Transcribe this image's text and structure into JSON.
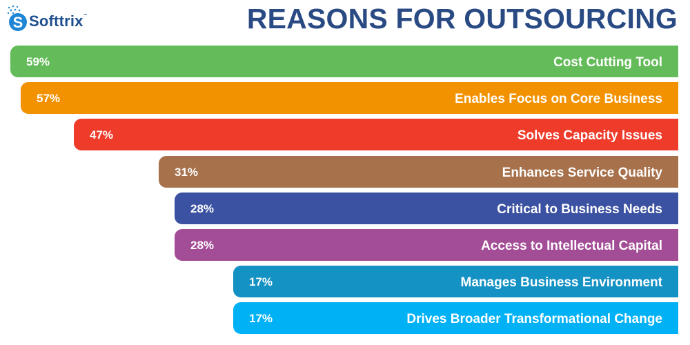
{
  "brand": {
    "name": "Softtrix",
    "trademark": "™"
  },
  "chart_data": {
    "type": "bar",
    "orientation": "horizontal",
    "title": "REASONS FOR OUTSOURCING",
    "xlabel": "",
    "ylabel": "",
    "value_unit": "%",
    "xlim": [
      0,
      59
    ],
    "grid": false,
    "categories": [
      "Cost Cutting Tool",
      "Enables Focus on Core Business",
      "Solves Capacity Issues",
      "Enhances Service Quality",
      "Critical to Business Needs",
      "Access to Intellectual Capital",
      "Manages Business Environment",
      "Drives Broader Transformational Change"
    ],
    "values": [
      59,
      57,
      47,
      31,
      28,
      28,
      17,
      17
    ],
    "value_labels": [
      "59%",
      "57%",
      "47%",
      "31%",
      "28%",
      "28%",
      "17%",
      "17%"
    ],
    "colors": [
      "#64bb5a",
      "#f39200",
      "#ee3b2a",
      "#a6714b",
      "#3b51a1",
      "#a44d97",
      "#1492c4",
      "#00b1f5"
    ]
  }
}
